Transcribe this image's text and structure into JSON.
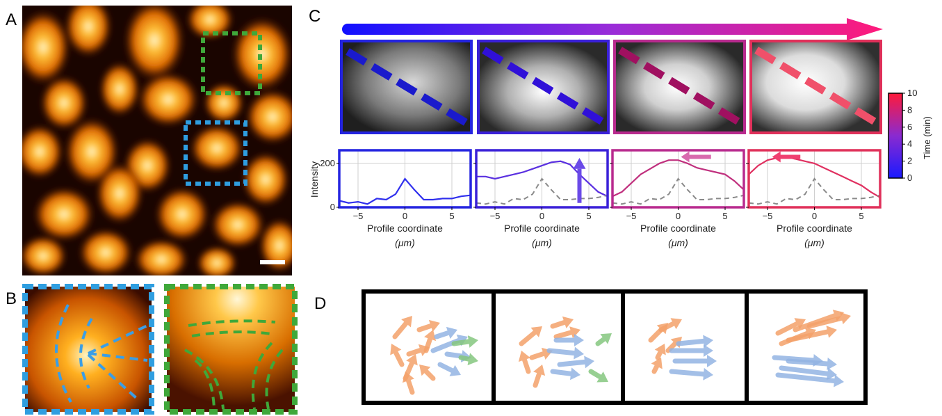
{
  "panels": {
    "a": "A",
    "b": "B",
    "c": "C",
    "d": "D"
  },
  "colors": {
    "blue_box": "#2f9ee0",
    "green_box": "#3fa83a",
    "orange_arrow": "#f4a26a",
    "blue_arrow": "#93b4e3",
    "green_arrow": "#86c77f",
    "time_start": "#1a1aff",
    "time_end": "#ff1a4a"
  },
  "colorbar": {
    "label": "Time (min)",
    "ticks": [
      "0",
      "2",
      "4",
      "6",
      "8",
      "10"
    ]
  },
  "profiles": {
    "ylabel": "Intensity",
    "xlabel_line1": "Profile coordinate",
    "xlabel_line2": "(μm)",
    "xticks": [
      "−5",
      "0",
      "5"
    ],
    "yticks": [
      "0",
      "200"
    ]
  },
  "chart_data": [
    {
      "type": "line",
      "panel": "C1",
      "xlabel": "Profile coordinate (μm)",
      "ylabel": "Intensity",
      "xlim": [
        -7,
        7
      ],
      "ylim": [
        0,
        260
      ],
      "series": [
        {
          "x": [
            -7,
            -6,
            -5,
            -4,
            -3,
            -2,
            -1,
            0,
            1,
            2,
            3,
            4,
            5,
            6,
            7
          ],
          "y": [
            30,
            20,
            25,
            15,
            40,
            35,
            60,
            130,
            80,
            35,
            35,
            40,
            40,
            50,
            55
          ]
        }
      ]
    },
    {
      "type": "line",
      "panel": "C2",
      "xlabel": "Profile coordinate (μm)",
      "xlim": [
        -7,
        7
      ],
      "ylim": [
        0,
        260
      ],
      "series": [
        {
          "x": [
            -7,
            -6,
            -5,
            -4,
            -3,
            -2,
            -1,
            0,
            1,
            2,
            3,
            4,
            5,
            6,
            7
          ],
          "y": [
            140,
            140,
            130,
            140,
            150,
            160,
            175,
            190,
            205,
            210,
            195,
            150,
            110,
            70,
            50
          ]
        },
        {
          "x": [
            -7,
            -6,
            -5,
            -4,
            -3,
            -2,
            -1,
            0,
            1,
            2,
            3,
            4,
            5,
            6,
            7
          ],
          "y": [
            20,
            15,
            25,
            15,
            40,
            35,
            60,
            130,
            80,
            35,
            35,
            40,
            40,
            45,
            55
          ]
        }
      ]
    },
    {
      "type": "line",
      "panel": "C3",
      "xlabel": "Profile coordinate (μm)",
      "xlim": [
        -7,
        7
      ],
      "ylim": [
        0,
        260
      ],
      "series": [
        {
          "x": [
            -7,
            -6,
            -5,
            -4,
            -3,
            -2,
            -1,
            0,
            1,
            2,
            3,
            4,
            5,
            6,
            7
          ],
          "y": [
            50,
            70,
            110,
            150,
            175,
            200,
            215,
            215,
            200,
            180,
            170,
            160,
            150,
            120,
            80
          ]
        },
        {
          "x": [
            -7,
            -6,
            -5,
            -4,
            -3,
            -2,
            -1,
            0,
            1,
            2,
            3,
            4,
            5,
            6,
            7
          ],
          "y": [
            20,
            15,
            25,
            15,
            40,
            35,
            60,
            130,
            80,
            35,
            35,
            40,
            40,
            45,
            55
          ]
        }
      ]
    },
    {
      "type": "line",
      "panel": "C4",
      "xlabel": "Profile coordinate (μm)",
      "xlim": [
        -7,
        7
      ],
      "ylim": [
        0,
        260
      ],
      "series": [
        {
          "x": [
            -7,
            -6,
            -5,
            -4,
            -3,
            -2,
            -1,
            0,
            1,
            2,
            3,
            4,
            5,
            6,
            7
          ],
          "y": [
            150,
            190,
            215,
            225,
            230,
            220,
            210,
            200,
            180,
            160,
            140,
            120,
            100,
            70,
            45
          ]
        },
        {
          "x": [
            -7,
            -6,
            -5,
            -4,
            -3,
            -2,
            -1,
            0,
            1,
            2,
            3,
            4,
            5,
            6,
            7
          ],
          "y": [
            20,
            15,
            25,
            15,
            40,
            35,
            60,
            130,
            80,
            35,
            35,
            40,
            40,
            45,
            55
          ]
        }
      ]
    }
  ]
}
